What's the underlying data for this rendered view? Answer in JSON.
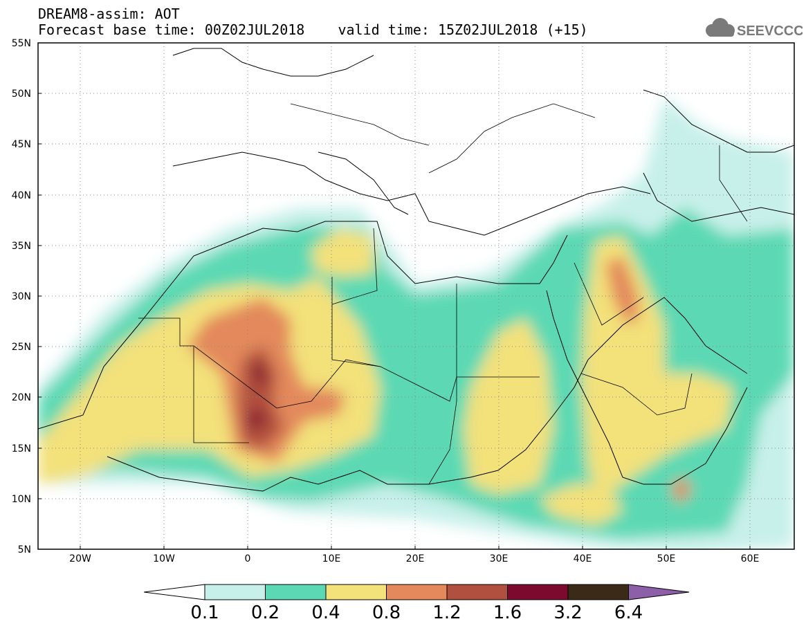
{
  "title": {
    "line1": "DREAM8-assim: AOT",
    "line2": "Forecast base time: 00Z02JUL2018    valid time: 15Z02JUL2018 (+15)"
  },
  "logo": {
    "text": "SEEVCCC",
    "icon": "cloud-icon"
  },
  "map": {
    "lon_range": [
      -25,
      65
    ],
    "lat_range": [
      5,
      55
    ],
    "x_ticks": [
      "20W",
      "10W",
      "0",
      "10E",
      "20E",
      "30E",
      "40E",
      "50E",
      "60E"
    ],
    "y_ticks": [
      "55N",
      "50N",
      "45N",
      "40N",
      "35N",
      "30N",
      "25N",
      "20N",
      "15N",
      "10N",
      "5N"
    ],
    "grid": "dotted"
  },
  "colorbar": {
    "labels": [
      "0.1",
      "0.2",
      "0.4",
      "0.8",
      "1.2",
      "1.6",
      "3.2",
      "6.4"
    ],
    "colors": [
      "#c8f0ea",
      "#5cd9b4",
      "#f3e17a",
      "#e3895c",
      "#b1503e",
      "#7b0a2e",
      "#3b2a18",
      "#8c5fa8"
    ],
    "under_color": "#ffffff"
  }
}
